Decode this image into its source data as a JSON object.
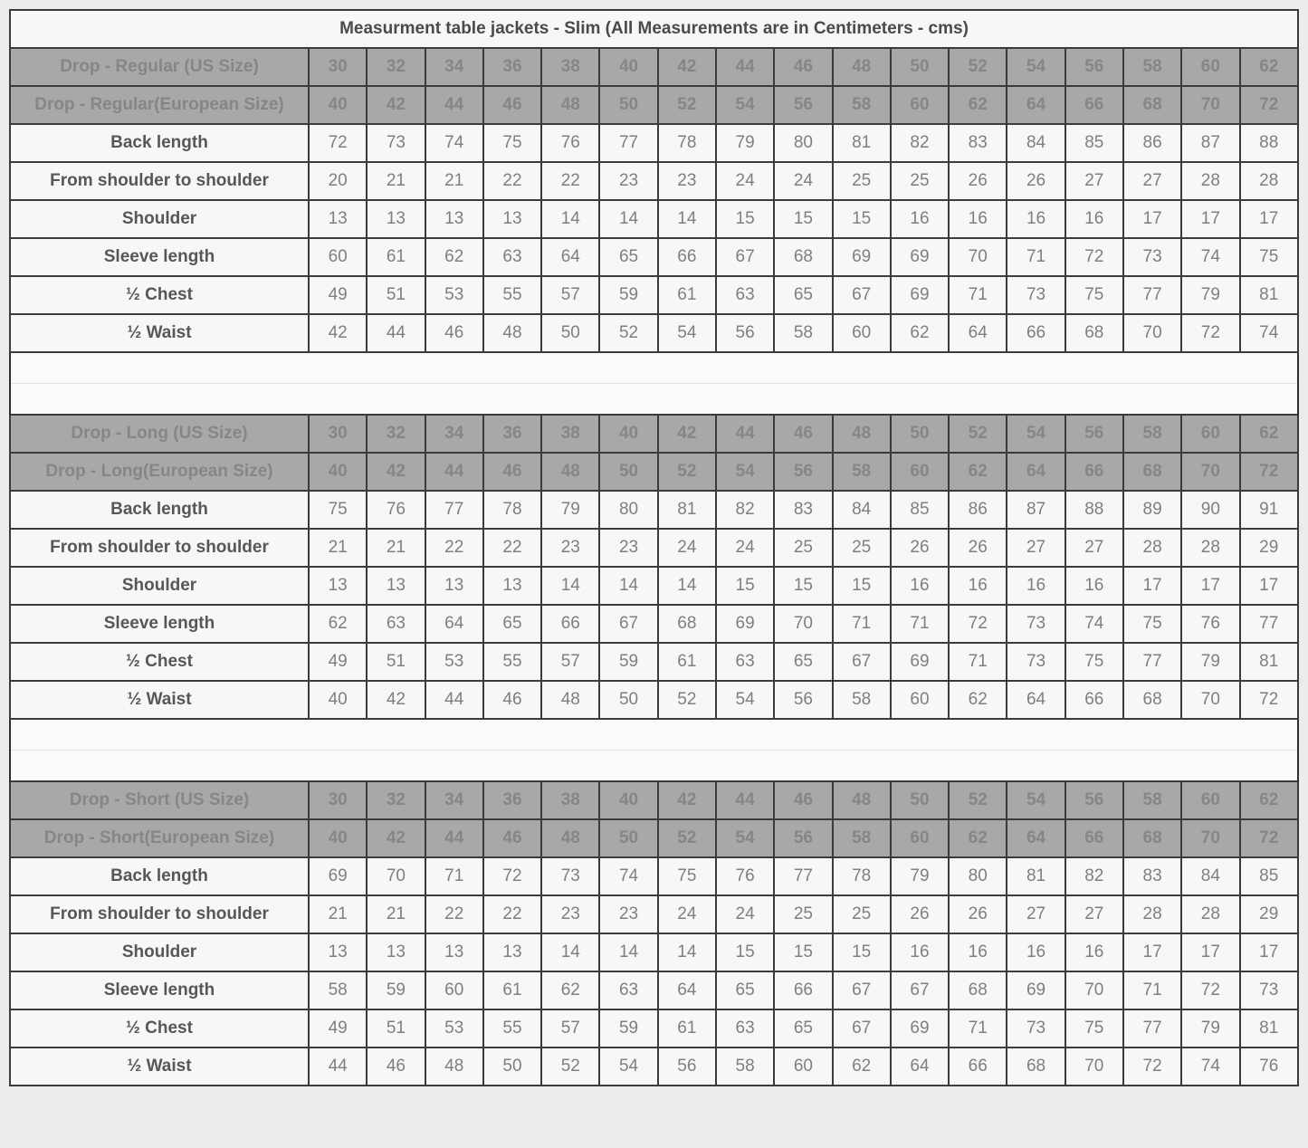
{
  "title": "Measurment table jackets - Slim (All Measurements are in Centimeters - cms)",
  "colors": {
    "header_row_bg": "#a8a8a8",
    "header_row_text": "#868686",
    "data_row_bg": "#f7f7f7",
    "value_text": "#7f7f7f",
    "label_text": "#575757",
    "border": "#3b3b3b",
    "page_bg": "#ececec"
  },
  "chart_data": [
    {
      "type": "table",
      "name": "drop-regular",
      "header_rows": [
        {
          "label": "Drop - Regular (US Size)",
          "values": [
            30,
            32,
            34,
            36,
            38,
            40,
            42,
            44,
            46,
            48,
            50,
            52,
            54,
            56,
            58,
            60,
            62
          ]
        },
        {
          "label": "Drop - Regular(European Size)",
          "values": [
            40,
            42,
            44,
            46,
            48,
            50,
            52,
            54,
            56,
            58,
            60,
            62,
            64,
            66,
            68,
            70,
            72
          ]
        }
      ],
      "rows": [
        {
          "label": "Back length",
          "values": [
            72,
            73,
            74,
            75,
            76,
            77,
            78,
            79,
            80,
            81,
            82,
            83,
            84,
            85,
            86,
            87,
            88
          ]
        },
        {
          "label": "From shoulder to shoulder",
          "values": [
            20,
            21,
            21,
            22,
            22,
            23,
            23,
            24,
            24,
            25,
            25,
            26,
            26,
            27,
            27,
            28,
            28
          ]
        },
        {
          "label": "Shoulder",
          "values": [
            13,
            13,
            13,
            13,
            14,
            14,
            14,
            15,
            15,
            15,
            16,
            16,
            16,
            16,
            17,
            17,
            17
          ]
        },
        {
          "label": "Sleeve length",
          "values": [
            60,
            61,
            62,
            63,
            64,
            65,
            66,
            67,
            68,
            69,
            69,
            70,
            71,
            72,
            73,
            74,
            75
          ]
        },
        {
          "label": "½ Chest",
          "values": [
            49,
            51,
            53,
            55,
            57,
            59,
            61,
            63,
            65,
            67,
            69,
            71,
            73,
            75,
            77,
            79,
            81
          ]
        },
        {
          "label": "½ Waist",
          "values": [
            42,
            44,
            46,
            48,
            50,
            52,
            54,
            56,
            58,
            60,
            62,
            64,
            66,
            68,
            70,
            72,
            74
          ]
        }
      ]
    },
    {
      "type": "table",
      "name": "drop-long",
      "header_rows": [
        {
          "label": "Drop - Long (US Size)",
          "values": [
            30,
            32,
            34,
            36,
            38,
            40,
            42,
            44,
            46,
            48,
            50,
            52,
            54,
            56,
            58,
            60,
            62
          ]
        },
        {
          "label": "Drop - Long(European Size)",
          "values": [
            40,
            42,
            44,
            46,
            48,
            50,
            52,
            54,
            56,
            58,
            60,
            62,
            64,
            66,
            68,
            70,
            72
          ]
        }
      ],
      "rows": [
        {
          "label": "Back length",
          "values": [
            75,
            76,
            77,
            78,
            79,
            80,
            81,
            82,
            83,
            84,
            85,
            86,
            87,
            88,
            89,
            90,
            91
          ]
        },
        {
          "label": "From shoulder to shoulder",
          "values": [
            21,
            21,
            22,
            22,
            23,
            23,
            24,
            24,
            25,
            25,
            26,
            26,
            27,
            27,
            28,
            28,
            29
          ]
        },
        {
          "label": "Shoulder",
          "values": [
            13,
            13,
            13,
            13,
            14,
            14,
            14,
            15,
            15,
            15,
            16,
            16,
            16,
            16,
            17,
            17,
            17
          ]
        },
        {
          "label": "Sleeve length",
          "values": [
            62,
            63,
            64,
            65,
            66,
            67,
            68,
            69,
            70,
            71,
            71,
            72,
            73,
            74,
            75,
            76,
            77
          ]
        },
        {
          "label": "½ Chest",
          "values": [
            49,
            51,
            53,
            55,
            57,
            59,
            61,
            63,
            65,
            67,
            69,
            71,
            73,
            75,
            77,
            79,
            81
          ]
        },
        {
          "label": "½ Waist",
          "values": [
            40,
            42,
            44,
            46,
            48,
            50,
            52,
            54,
            56,
            58,
            60,
            62,
            64,
            66,
            68,
            70,
            72
          ]
        }
      ]
    },
    {
      "type": "table",
      "name": "drop-short",
      "header_rows": [
        {
          "label": "Drop - Short (US Size)",
          "values": [
            30,
            32,
            34,
            36,
            38,
            40,
            42,
            44,
            46,
            48,
            50,
            52,
            54,
            56,
            58,
            60,
            62
          ]
        },
        {
          "label": "Drop - Short(European Size)",
          "values": [
            40,
            42,
            44,
            46,
            48,
            50,
            52,
            54,
            56,
            58,
            60,
            62,
            64,
            66,
            68,
            70,
            72
          ]
        }
      ],
      "rows": [
        {
          "label": "Back length",
          "values": [
            69,
            70,
            71,
            72,
            73,
            74,
            75,
            76,
            77,
            78,
            79,
            80,
            81,
            82,
            83,
            84,
            85
          ]
        },
        {
          "label": "From shoulder to shoulder",
          "values": [
            21,
            21,
            22,
            22,
            23,
            23,
            24,
            24,
            25,
            25,
            26,
            26,
            27,
            27,
            28,
            28,
            29
          ]
        },
        {
          "label": "Shoulder",
          "values": [
            13,
            13,
            13,
            13,
            14,
            14,
            14,
            15,
            15,
            15,
            16,
            16,
            16,
            16,
            17,
            17,
            17
          ]
        },
        {
          "label": "Sleeve length",
          "values": [
            58,
            59,
            60,
            61,
            62,
            63,
            64,
            65,
            66,
            67,
            67,
            68,
            69,
            70,
            71,
            72,
            73
          ]
        },
        {
          "label": "½ Chest",
          "values": [
            49,
            51,
            53,
            55,
            57,
            59,
            61,
            63,
            65,
            67,
            69,
            71,
            73,
            75,
            77,
            79,
            81
          ]
        },
        {
          "label": "½ Waist",
          "values": [
            44,
            46,
            48,
            50,
            52,
            54,
            56,
            58,
            60,
            62,
            64,
            66,
            68,
            70,
            72,
            74,
            76
          ]
        }
      ]
    }
  ]
}
